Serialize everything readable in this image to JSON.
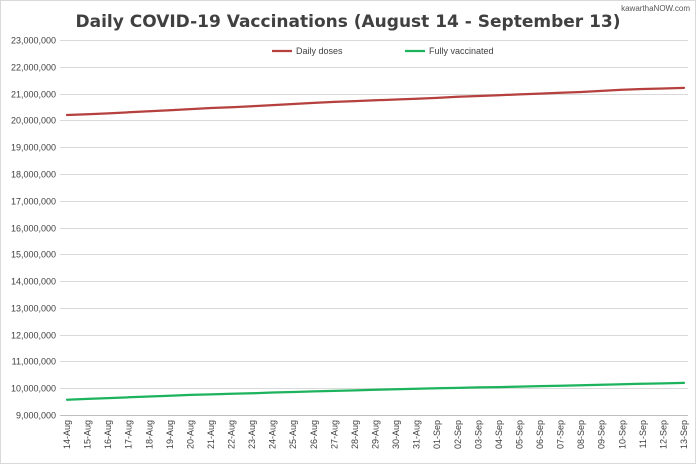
{
  "chart_data": {
    "type": "line",
    "title": "Daily COVID-19 Vaccinations (August 14 - September 13)",
    "xlabel": "",
    "ylabel": "",
    "categories": [
      "14-Aug",
      "15-Aug",
      "16-Aug",
      "17-Aug",
      "18-Aug",
      "19-Aug",
      "20-Aug",
      "21-Aug",
      "22-Aug",
      "23-Aug",
      "24-Aug",
      "25-Aug",
      "26-Aug",
      "27-Aug",
      "28-Aug",
      "29-Aug",
      "30-Aug",
      "31-Aug",
      "01-Sep",
      "02-Sep",
      "03-Sep",
      "04-Sep",
      "05-Sep",
      "06-Sep",
      "07-Sep",
      "08-Sep",
      "09-Sep",
      "10-Sep",
      "11-Sep",
      "12-Sep",
      "13-Sep"
    ],
    "ylim": [
      9000000,
      23000000
    ],
    "yticks": [
      9000000,
      10000000,
      11000000,
      12000000,
      13000000,
      14000000,
      15000000,
      16000000,
      17000000,
      18000000,
      19000000,
      20000000,
      21000000,
      22000000,
      23000000
    ],
    "ytick_labels": [
      "9,000,000",
      "10,000,000",
      "11,000,000",
      "12,000,000",
      "13,000,000",
      "14,000,000",
      "15,000,000",
      "16,000,000",
      "17,000,000",
      "18,000,000",
      "19,000,000",
      "20,000,000",
      "21,000,000",
      "22,000,000",
      "23,000,000"
    ],
    "grid": true,
    "legend": "top-center",
    "series": [
      {
        "name": "Daily doses",
        "color": "#b5403e",
        "values": [
          20200000,
          20230000,
          20260000,
          20300000,
          20340000,
          20380000,
          20420000,
          20460000,
          20490000,
          20530000,
          20570000,
          20610000,
          20650000,
          20690000,
          20720000,
          20750000,
          20780000,
          20810000,
          20840000,
          20880000,
          20910000,
          20940000,
          20970000,
          21000000,
          21030000,
          21060000,
          21100000,
          21140000,
          21170000,
          21190000,
          21210000
        ]
      },
      {
        "name": "Fully vaccinated",
        "color": "#1db35d",
        "values": [
          9570000,
          9600000,
          9630000,
          9660000,
          9690000,
          9720000,
          9750000,
          9770000,
          9790000,
          9810000,
          9840000,
          9860000,
          9880000,
          9900000,
          9920000,
          9940000,
          9960000,
          9980000,
          10000000,
          10010000,
          10030000,
          10040000,
          10060000,
          10080000,
          10090000,
          10110000,
          10130000,
          10150000,
          10170000,
          10180000,
          10200000
        ]
      }
    ]
  },
  "watermark": "kawarthaNOW.com"
}
